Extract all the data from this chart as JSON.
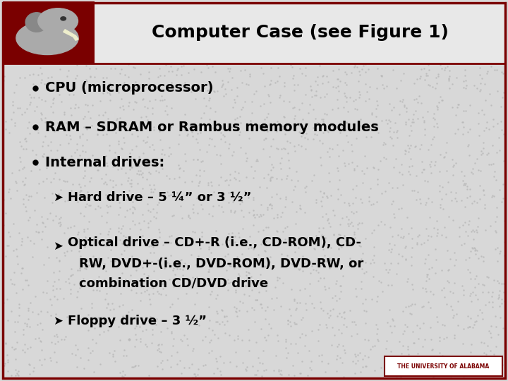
{
  "title": "Computer Case (see Figure 1)",
  "background_color": "#d8d8d8",
  "border_color": "#7a0000",
  "title_color": "#000000",
  "title_fontsize": 18,
  "bullet_fontsize": 14,
  "sub_bullet_fontsize": 13,
  "bullet_color": "#000000",
  "bullets": [
    "CPU (microprocessor)",
    "RAM – SDRAM or Rambus memory modules",
    "Internal drives:"
  ],
  "sub_bullet_1": "Hard drive – 5 ¼” or 3 ½”",
  "sub_bullet_2_line1": "➤Optical drive – CD+-R (i.e., CD-ROM), CD-",
  "sub_bullet_2_line2": "   RW, DVD+-(i.e., DVD-ROM), DVD-RW, or",
  "sub_bullet_2_line3": "   combination CD/DVD drive",
  "sub_bullet_3": "Floppy drive – 3 ½”",
  "footer_text": "THE UNIVERSITY OF ALABAMA",
  "footer_color": "#7a0000",
  "footer_bg": "#ffffff",
  "header_bg": "#7a0000",
  "logo_box_color": "#7a0000",
  "header_divider_color": "#7a0000"
}
